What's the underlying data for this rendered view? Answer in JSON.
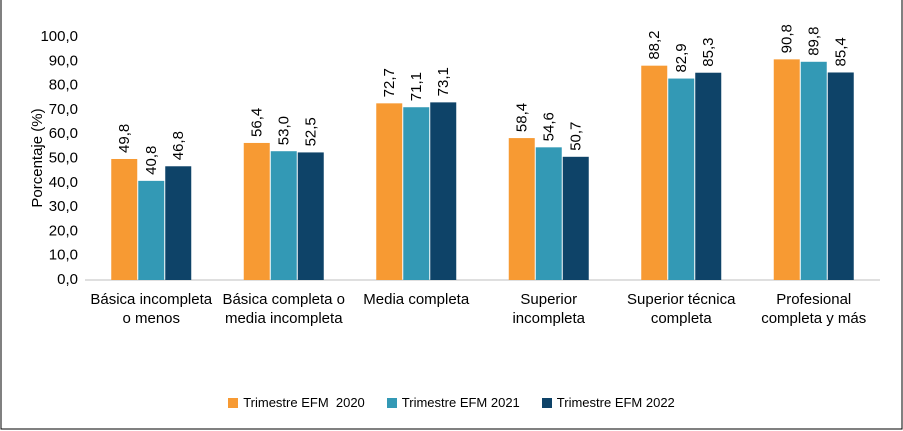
{
  "chart_data": {
    "type": "bar",
    "y_label": "Porcentaje (%)",
    "categories": [
      "Básica incompleta o menos",
      "Básica completa o media incompleta",
      "Media completa",
      "Superior incompleta",
      "Superior técnica completa",
      "Profesional completa y más"
    ],
    "series": [
      {
        "name": "Trimestre EFM  2020",
        "color": "#f79a33",
        "values": [
          49.8,
          56.4,
          72.7,
          58.4,
          88.2,
          90.8
        ],
        "value_labels": [
          "49,8",
          "56,4",
          "72,7",
          "58,4",
          "88,2",
          "90,8"
        ]
      },
      {
        "name": "Trimestre EFM 2021",
        "color": "#3399b5",
        "values": [
          40.8,
          53.0,
          71.1,
          54.6,
          82.9,
          89.8
        ],
        "value_labels": [
          "40,8",
          "53,0",
          "71,1",
          "54,6",
          "82,9",
          "89,8"
        ]
      },
      {
        "name": "Trimestre EFM 2022",
        "color": "#0e4368",
        "values": [
          46.8,
          52.5,
          73.1,
          50.7,
          85.3,
          85.4
        ],
        "value_labels": [
          "46,8",
          "52,5",
          "73,1",
          "50,7",
          "85,3",
          "85,4"
        ]
      }
    ],
    "ylim": [
      0,
      100
    ],
    "yticks": [
      {
        "value": 0,
        "label": "0,0"
      },
      {
        "value": 10,
        "label": "10,0"
      },
      {
        "value": 20,
        "label": "20,0"
      },
      {
        "value": 30,
        "label": "30,0"
      },
      {
        "value": 40,
        "label": "40,0"
      },
      {
        "value": 50,
        "label": "50,0"
      },
      {
        "value": 60,
        "label": "60,0"
      },
      {
        "value": 70,
        "label": "70,0"
      },
      {
        "value": 80,
        "label": "80,0"
      },
      {
        "value": 90,
        "label": "90,0"
      },
      {
        "value": 100,
        "label": "100,0"
      }
    ],
    "legend": "bottom"
  }
}
